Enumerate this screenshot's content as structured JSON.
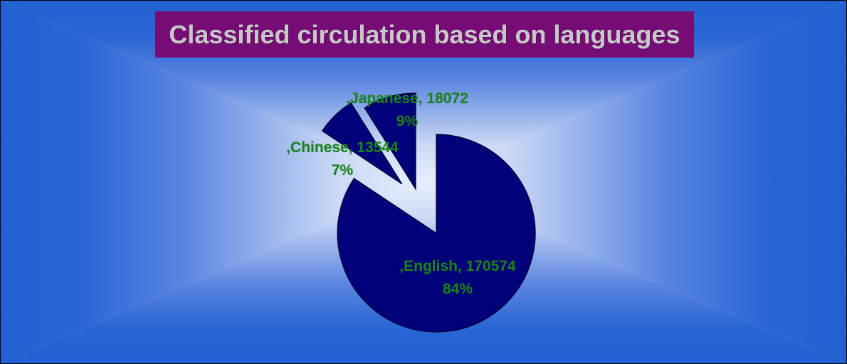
{
  "title": "Classified circulation based on languages",
  "chart_data": {
    "type": "pie",
    "title": "Classified circulation based on languages",
    "categories": [
      "English",
      "Japanese",
      "Chinese"
    ],
    "values": [
      170574,
      18072,
      13544
    ],
    "percent_labels": [
      "84%",
      "9%",
      "7%"
    ],
    "slices": [
      {
        "name": "English",
        "value": 170574,
        "label": ",English, 170574",
        "pct_label": "84%"
      },
      {
        "name": "Japanese",
        "value": 18072,
        "label": ",Japanese, 18072",
        "pct_label": "9%"
      },
      {
        "name": "Chinese",
        "value": 13544,
        "label": ",Chinese, 13544",
        "pct_label": "7%"
      }
    ],
    "legend": "none",
    "exploded_slices": [
      "Japanese",
      "Chinese"
    ],
    "label_style": "category-value-percent"
  },
  "colors": {
    "slice_fill": "#01017a",
    "slice_outline": "#000030",
    "label_green": "#1a851a",
    "title_background": "#760c76",
    "title_text": "#c8c8c8",
    "background_edge_blue": "#2161d2",
    "background_center_light": "#e6eefd"
  }
}
